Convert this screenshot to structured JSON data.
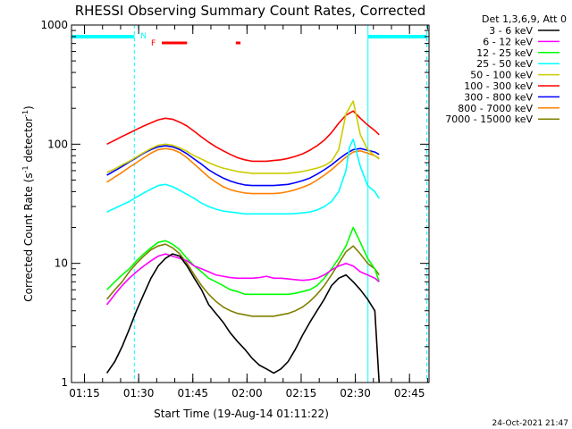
{
  "chart_data": {
    "type": "line",
    "title": "RHESSI Observing Summary Count Rates, Corrected",
    "xlabel": "Start Time (19-Aug-14 01:11:22)",
    "ylabel_main": "Corrected Count Rate (s",
    "ylabel_sup1": "-1",
    "ylabel_mid": " detector",
    "ylabel_sup2": "-1",
    "ylabel_end": ")",
    "y_scale": "log",
    "ylim": [
      1,
      1000
    ],
    "xlim_minutes": [
      0,
      99
    ],
    "x_ticks": [
      {
        "label": "01:15",
        "value": 3.6
      },
      {
        "label": "01:30",
        "value": 18.6
      },
      {
        "label": "01:45",
        "value": 33.6
      },
      {
        "label": "02:00",
        "value": 48.6
      },
      {
        "label": "02:15",
        "value": 63.6
      },
      {
        "label": "02:30",
        "value": 78.6
      },
      {
        "label": "02:45",
        "value": 93.6
      }
    ],
    "y_ticks": [
      {
        "label": "1",
        "value": 1
      },
      {
        "label": "10",
        "value": 10
      },
      {
        "label": "100",
        "value": 100
      },
      {
        "label": "1000",
        "value": 1000
      }
    ],
    "detector_label": "Det 1,3,6,9, Att 0",
    "flags": {
      "N": "N",
      "F": "F",
      "night_color": "#00ffff",
      "flare_color": "#ff0000",
      "night_intervals": [
        [
          0,
          17.4
        ],
        [
          82.1,
          98.4
        ]
      ],
      "flare_intervals": [
        [
          25,
          32
        ],
        [
          45.5,
          46.8
        ]
      ]
    },
    "series": [
      {
        "name": "3 - 6 keV",
        "color": "#000000",
        "x": [
          9.8,
          12,
          14,
          16,
          18,
          20,
          22,
          24,
          26,
          28,
          30,
          32,
          34,
          36,
          38,
          40,
          42,
          44,
          46,
          48,
          50,
          52,
          54,
          56,
          58,
          60,
          62,
          64,
          66,
          68,
          70,
          72,
          74,
          76,
          78,
          80,
          82,
          84,
          85.2
        ],
        "y": [
          1.2,
          1.5,
          2,
          2.8,
          4,
          5.5,
          7.5,
          9.5,
          11,
          12,
          11.5,
          9.5,
          7.5,
          6,
          4.5,
          3.8,
          3.2,
          2.6,
          2.2,
          1.9,
          1.6,
          1.4,
          1.3,
          1.2,
          1.3,
          1.5,
          1.9,
          2.5,
          3.2,
          4,
          5,
          6.5,
          7.5,
          8,
          7,
          6,
          5,
          4,
          1
        ]
      },
      {
        "name": "6 - 12 keV",
        "color": "#ff00ff",
        "x": [
          9.8,
          12,
          14,
          16,
          18,
          20,
          22,
          24,
          26,
          28,
          30,
          32,
          34,
          36,
          38,
          40,
          42,
          44,
          46,
          48,
          50,
          52,
          54,
          56,
          58,
          60,
          62,
          64,
          66,
          68,
          70,
          72,
          74,
          76,
          78,
          80,
          82,
          84,
          85.2
        ],
        "y": [
          4.5,
          5.5,
          6.5,
          7.5,
          8.5,
          9.5,
          10.5,
          11.5,
          12,
          11.5,
          11,
          10.5,
          9.5,
          9,
          8.5,
          8,
          7.8,
          7.6,
          7.5,
          7.5,
          7.5,
          7.6,
          7.8,
          7.5,
          7.5,
          7.4,
          7.3,
          7.2,
          7.3,
          7.5,
          8,
          8.8,
          9.5,
          10,
          9.5,
          8.5,
          8,
          7.5,
          7
        ]
      },
      {
        "name": "12 - 25 keV",
        "color": "#00ff00",
        "x": [
          9.8,
          12,
          14,
          16,
          18,
          20,
          22,
          24,
          26,
          28,
          30,
          32,
          34,
          36,
          38,
          40,
          42,
          44,
          46,
          48,
          50,
          52,
          54,
          56,
          58,
          60,
          62,
          64,
          66,
          68,
          70,
          72,
          74,
          76,
          78,
          80,
          82,
          84,
          85.2
        ],
        "y": [
          6,
          7,
          8,
          9,
          10.5,
          12,
          13.5,
          15,
          15.5,
          14.5,
          13,
          11,
          9.5,
          8.5,
          7.5,
          7,
          6.5,
          6,
          5.8,
          5.5,
          5.5,
          5.5,
          5.5,
          5.5,
          5.5,
          5.5,
          5.6,
          5.8,
          6,
          6.5,
          7.5,
          9,
          11,
          14,
          20,
          15,
          11,
          9,
          7
        ]
      },
      {
        "name": "25 - 50 keV",
        "color": "#00ffff",
        "x": [
          9.8,
          12,
          14,
          16,
          18,
          20,
          22,
          24,
          26,
          28,
          30,
          32,
          34,
          36,
          38,
          40,
          42,
          44,
          46,
          48,
          50,
          52,
          54,
          56,
          58,
          60,
          62,
          64,
          66,
          68,
          70,
          72,
          74,
          76,
          77,
          78,
          80,
          82,
          84,
          85.2
        ],
        "y": [
          27,
          29,
          31,
          33,
          36,
          39,
          42,
          45,
          46,
          44,
          41,
          38,
          35,
          32,
          30,
          28.5,
          27.5,
          27,
          26.5,
          26,
          26,
          26,
          26,
          26,
          26,
          26,
          26.2,
          26.5,
          27,
          28,
          30,
          33,
          40,
          60,
          95,
          110,
          65,
          45,
          40,
          35
        ]
      },
      {
        "name": "50 - 100 keV",
        "color": "#cccc00",
        "x": [
          9.8,
          12,
          14,
          16,
          18,
          20,
          22,
          24,
          26,
          28,
          30,
          32,
          34,
          36,
          38,
          40,
          42,
          44,
          46,
          48,
          50,
          52,
          54,
          56,
          58,
          60,
          62,
          64,
          66,
          68,
          70,
          72,
          74,
          76,
          78,
          80,
          82,
          84,
          85.2
        ],
        "y": [
          58,
          62,
          67,
          72,
          78,
          85,
          92,
          98,
          100,
          98,
          93,
          87,
          80,
          75,
          70,
          66,
          63,
          61,
          59,
          58,
          57,
          57,
          57,
          57,
          57,
          57,
          58,
          59,
          61,
          63,
          66,
          72,
          90,
          180,
          230,
          120,
          90,
          80,
          75
        ]
      },
      {
        "name": "100 - 300 keV",
        "color": "#ff0000",
        "x": [
          9.8,
          12,
          14,
          16,
          18,
          20,
          22,
          24,
          26,
          28,
          30,
          32,
          34,
          36,
          38,
          40,
          42,
          44,
          46,
          48,
          50,
          52,
          54,
          56,
          58,
          60,
          62,
          64,
          66,
          68,
          70,
          72,
          74,
          76,
          78,
          80,
          82,
          84,
          85.2
        ],
        "y": [
          100,
          108,
          116,
          124,
          133,
          142,
          151,
          160,
          165,
          162,
          153,
          142,
          128,
          115,
          104,
          95,
          88,
          82,
          77,
          74,
          72,
          72,
          72,
          73,
          74,
          76,
          79,
          83,
          89,
          97,
          108,
          125,
          150,
          175,
          190,
          165,
          145,
          130,
          120
        ]
      },
      {
        "name": "300 - 800 keV",
        "color": "#0000ff",
        "x": [
          9.8,
          12,
          14,
          16,
          18,
          20,
          22,
          24,
          26,
          28,
          30,
          32,
          34,
          36,
          38,
          40,
          42,
          44,
          46,
          48,
          50,
          52,
          54,
          56,
          58,
          60,
          62,
          64,
          66,
          68,
          70,
          72,
          74,
          76,
          78,
          80,
          82,
          84,
          85.2
        ],
        "y": [
          55,
          60,
          65,
          71,
          77,
          84,
          90,
          95,
          97,
          95,
          90,
          83,
          75,
          68,
          61,
          56,
          52,
          49,
          47,
          45.5,
          45,
          45,
          45,
          45,
          45.5,
          46,
          47.5,
          49.5,
          52,
          56,
          61,
          67,
          75,
          83,
          90,
          92,
          89,
          86,
          82
        ]
      },
      {
        "name": "800 - 7000 keV",
        "color": "#ff8000",
        "x": [
          9.8,
          12,
          14,
          16,
          18,
          20,
          22,
          24,
          26,
          28,
          30,
          32,
          34,
          36,
          38,
          40,
          42,
          44,
          46,
          48,
          50,
          52,
          54,
          56,
          58,
          60,
          62,
          64,
          66,
          68,
          70,
          72,
          74,
          76,
          78,
          80,
          82,
          84,
          85.2
        ],
        "y": [
          48,
          53,
          58,
          64,
          70,
          77,
          84,
          90,
          92,
          90,
          85,
          77,
          68,
          60,
          53,
          48,
          44,
          41.5,
          40,
          39,
          38.5,
          38.5,
          38.5,
          38.5,
          39,
          40,
          41.5,
          43.5,
          46,
          50,
          55,
          61,
          69,
          78,
          86,
          88,
          84,
          80,
          76
        ]
      },
      {
        "name": "7000 - 15000 keV",
        "color": "#808000",
        "x": [
          9.8,
          12,
          14,
          16,
          18,
          20,
          22,
          24,
          26,
          28,
          30,
          32,
          34,
          36,
          38,
          40,
          42,
          44,
          46,
          48,
          50,
          52,
          54,
          56,
          58,
          60,
          62,
          64,
          66,
          68,
          70,
          72,
          74,
          76,
          78,
          80,
          82,
          84,
          85.2
        ],
        "y": [
          5,
          6,
          7,
          8.5,
          10,
          11.5,
          13,
          14,
          14.5,
          13.5,
          12,
          10,
          8,
          6.5,
          5.5,
          4.8,
          4.3,
          4,
          3.8,
          3.7,
          3.6,
          3.6,
          3.6,
          3.6,
          3.7,
          3.8,
          4,
          4.3,
          4.8,
          5.5,
          6.5,
          8,
          10,
          12.5,
          14,
          12,
          10,
          9,
          8
        ]
      }
    ]
  },
  "footer": {
    "timestamp": "24-Oct-2021 21:47"
  }
}
